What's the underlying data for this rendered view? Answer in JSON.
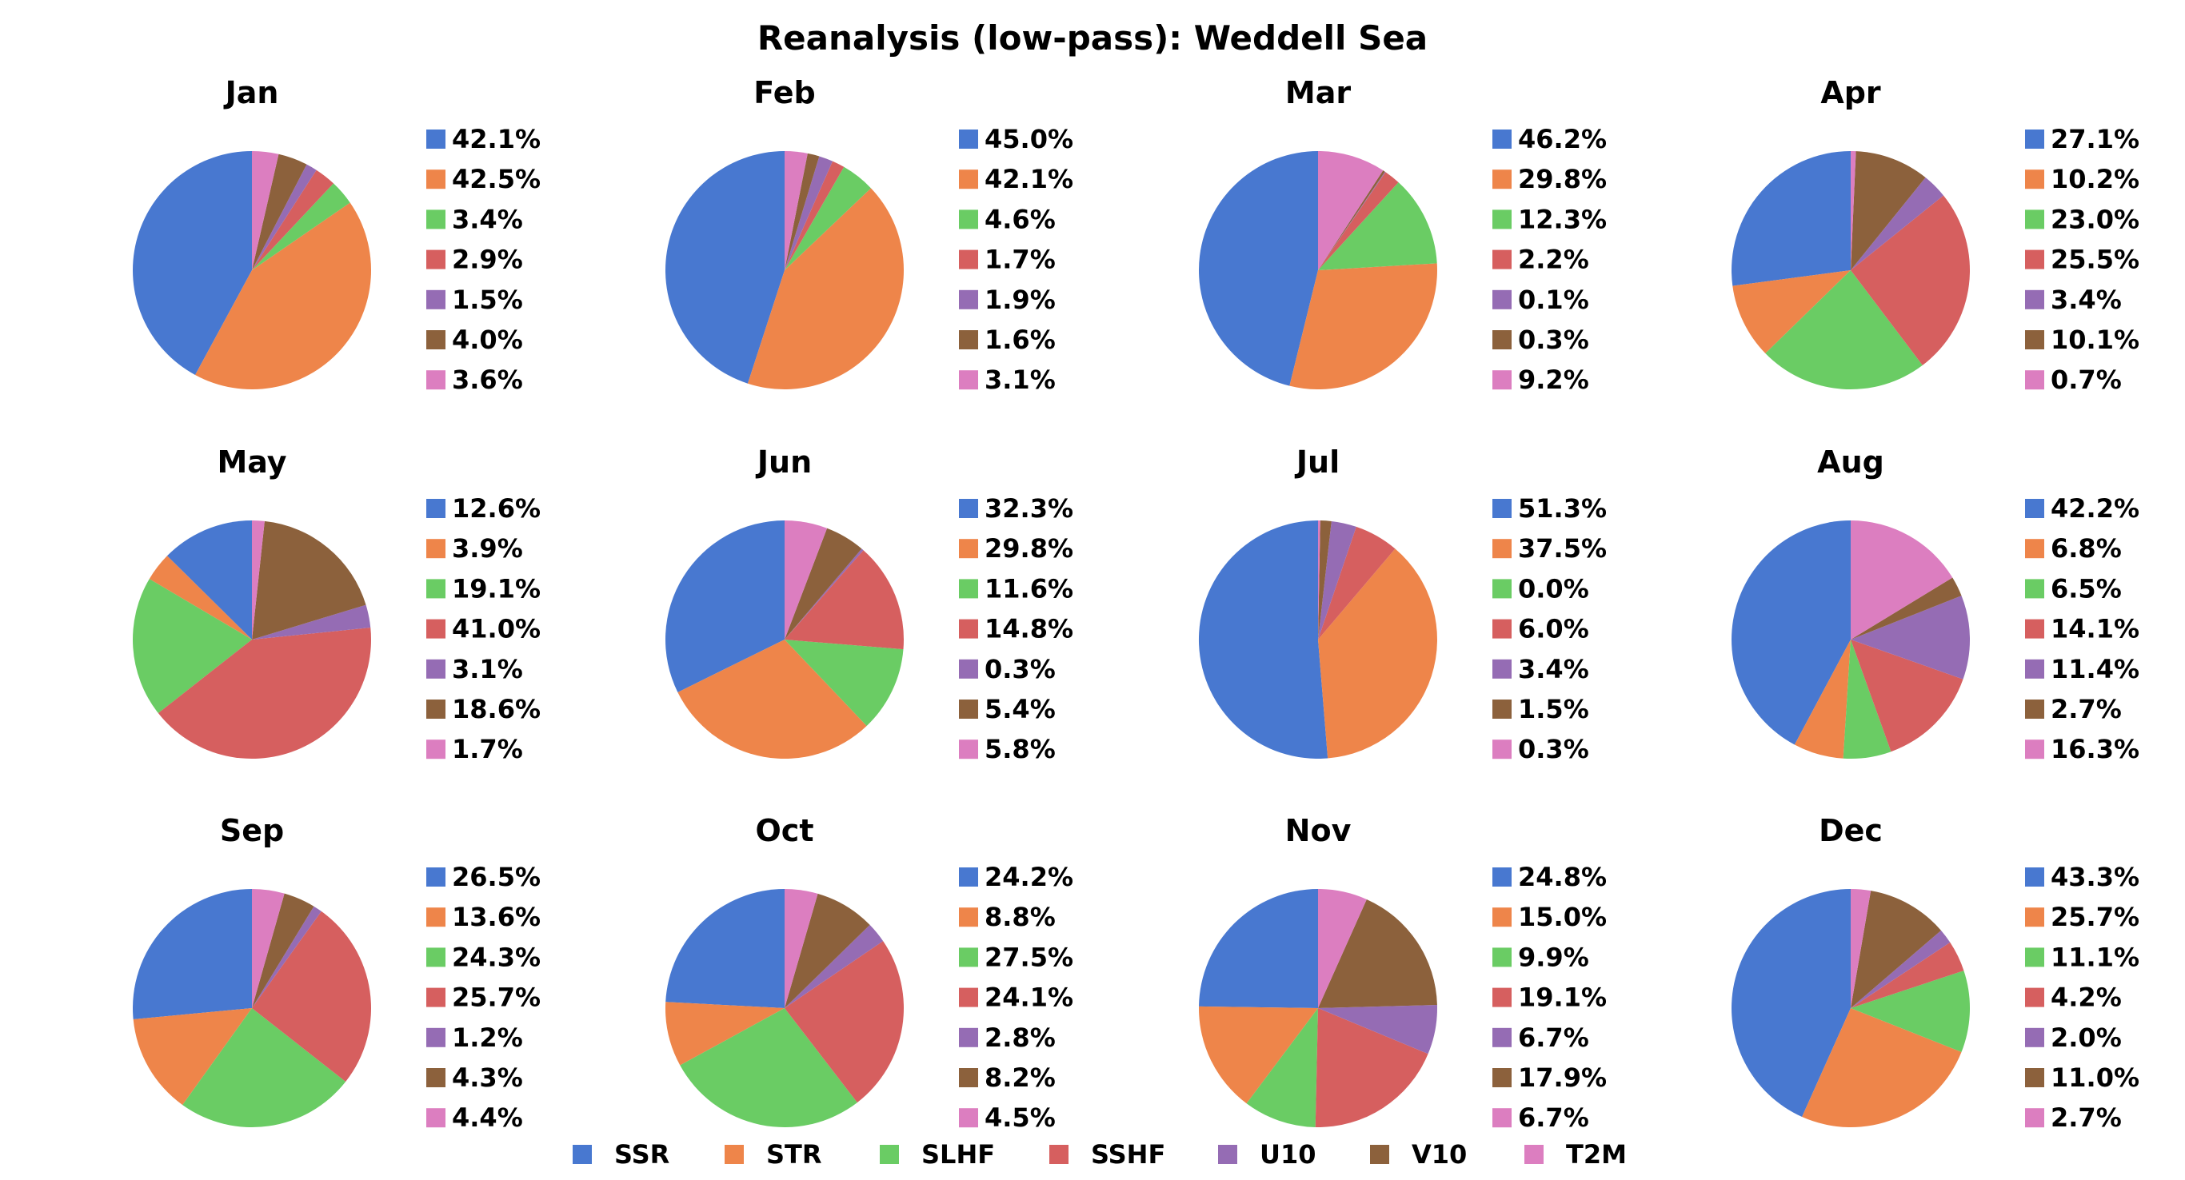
{
  "chart_data": {
    "type": "pie",
    "title": "Reanalysis (low-pass): Weddell Sea",
    "series_names": [
      "SSR",
      "STR",
      "SLHF",
      "SSHF",
      "U10",
      "V10",
      "T2M"
    ],
    "colors": [
      "#4878d0",
      "#ee854a",
      "#6acc64",
      "#d65f5f",
      "#956cb4",
      "#8c613c",
      "#dc7ec0"
    ],
    "legend_position": "bottom",
    "charts": [
      {
        "title": "Jan",
        "values": [
          42.1,
          42.5,
          3.4,
          2.9,
          1.5,
          4.0,
          3.6
        ],
        "labels": [
          "42.1%",
          "42.5%",
          "3.4%",
          "2.9%",
          "1.5%",
          "4.0%",
          "3.6%"
        ]
      },
      {
        "title": "Feb",
        "values": [
          45.0,
          42.1,
          4.6,
          1.7,
          1.9,
          1.6,
          3.1
        ],
        "labels": [
          "45.0%",
          "42.1%",
          "4.6%",
          "1.7%",
          "1.9%",
          "1.6%",
          "3.1%"
        ]
      },
      {
        "title": "Mar",
        "values": [
          46.2,
          29.8,
          12.3,
          2.2,
          0.1,
          0.3,
          9.2
        ],
        "labels": [
          "46.2%",
          "29.8%",
          "12.3%",
          "2.2%",
          "0.1%",
          "0.3%",
          "9.2%"
        ]
      },
      {
        "title": "Apr",
        "values": [
          27.1,
          10.2,
          23.0,
          25.5,
          3.4,
          10.1,
          0.7
        ],
        "labels": [
          "27.1%",
          "10.2%",
          "23.0%",
          "25.5%",
          "3.4%",
          "10.1%",
          "0.7%"
        ]
      },
      {
        "title": "May",
        "values": [
          12.6,
          3.9,
          19.1,
          41.0,
          3.1,
          18.6,
          1.7
        ],
        "labels": [
          "12.6%",
          "3.9%",
          "19.1%",
          "41.0%",
          "3.1%",
          "18.6%",
          "1.7%"
        ]
      },
      {
        "title": "Jun",
        "values": [
          32.3,
          29.8,
          11.6,
          14.8,
          0.3,
          5.4,
          5.8
        ],
        "labels": [
          "32.3%",
          "29.8%",
          "11.6%",
          "14.8%",
          "0.3%",
          "5.4%",
          "5.8%"
        ]
      },
      {
        "title": "Jul",
        "values": [
          51.3,
          37.5,
          0.0,
          6.0,
          3.4,
          1.5,
          0.3
        ],
        "labels": [
          "51.3%",
          "37.5%",
          "0.0%",
          "6.0%",
          "3.4%",
          "1.5%",
          "0.3%"
        ]
      },
      {
        "title": "Aug",
        "values": [
          42.2,
          6.8,
          6.5,
          14.1,
          11.4,
          2.7,
          16.3
        ],
        "labels": [
          "42.2%",
          "6.8%",
          "6.5%",
          "14.1%",
          "11.4%",
          "2.7%",
          "16.3%"
        ]
      },
      {
        "title": "Sep",
        "values": [
          26.5,
          13.6,
          24.3,
          25.7,
          1.2,
          4.3,
          4.4
        ],
        "labels": [
          "26.5%",
          "13.6%",
          "24.3%",
          "25.7%",
          "1.2%",
          "4.3%",
          "4.4%"
        ]
      },
      {
        "title": "Oct",
        "values": [
          24.2,
          8.8,
          27.5,
          24.1,
          2.8,
          8.2,
          4.5
        ],
        "labels": [
          "24.2%",
          "8.8%",
          "27.5%",
          "24.1%",
          "2.8%",
          "8.2%",
          "4.5%"
        ]
      },
      {
        "title": "Nov",
        "values": [
          24.8,
          15.0,
          9.9,
          19.1,
          6.7,
          17.9,
          6.7
        ],
        "labels": [
          "24.8%",
          "15.0%",
          "9.9%",
          "19.1%",
          "6.7%",
          "17.9%",
          "6.7%"
        ]
      },
      {
        "title": "Dec",
        "values": [
          43.3,
          25.7,
          11.1,
          4.2,
          2.0,
          11.0,
          2.7
        ],
        "labels": [
          "43.3%",
          "25.7%",
          "11.1%",
          "4.2%",
          "2.0%",
          "11.0%",
          "2.7%"
        ]
      }
    ]
  }
}
